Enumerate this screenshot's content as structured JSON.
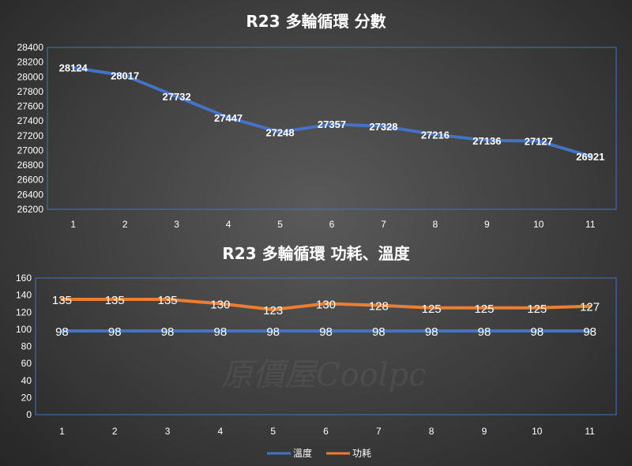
{
  "chart_data": [
    {
      "type": "line",
      "title": "R23 多輪循環 分數",
      "categories": [
        "1",
        "2",
        "3",
        "4",
        "5",
        "6",
        "7",
        "8",
        "9",
        "10",
        "11"
      ],
      "series": [
        {
          "values": [
            28124,
            28017,
            27732,
            27447,
            27248,
            27357,
            27328,
            27216,
            27136,
            27127,
            26921
          ],
          "color": "#4472C4"
        }
      ],
      "ylim": [
        26200,
        28400
      ],
      "ytick_step": 200,
      "grid": false,
      "data_labels": true
    },
    {
      "type": "line",
      "title": "R23 多輪循環 功耗、溫度",
      "categories": [
        "1",
        "2",
        "3",
        "4",
        "5",
        "6",
        "7",
        "8",
        "9",
        "10",
        "11"
      ],
      "series": [
        {
          "name": "溫度",
          "values": [
            98,
            98,
            98,
            98,
            98,
            98,
            98,
            98,
            98,
            98,
            98
          ],
          "color": "#4472C4"
        },
        {
          "name": "功耗",
          "values": [
            135,
            135,
            135,
            130,
            123,
            130,
            128,
            125,
            125,
            125,
            127
          ],
          "color": "#ED7D31"
        }
      ],
      "ylim": [
        0,
        160
      ],
      "ytick_step": 20,
      "grid": false,
      "legend": "bottom",
      "data_labels": true
    }
  ],
  "watermark": "原價屋Coolpc"
}
